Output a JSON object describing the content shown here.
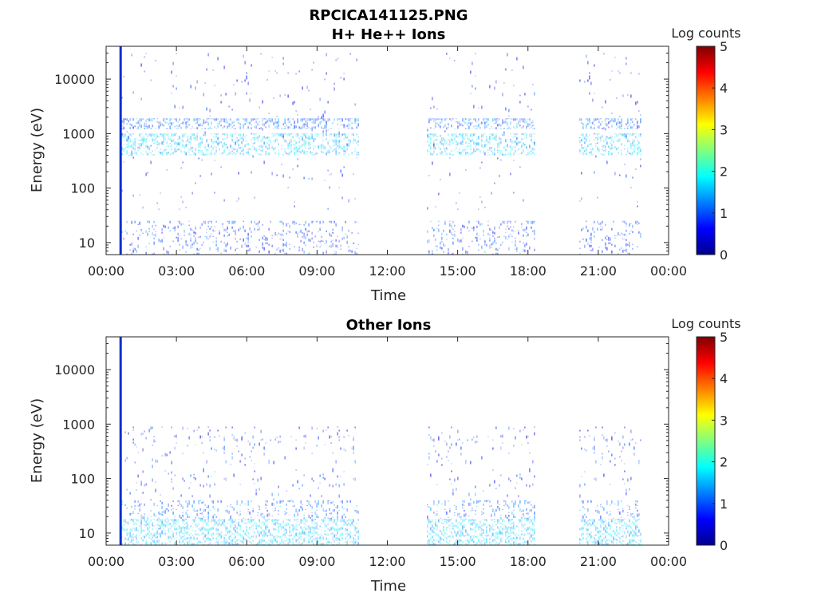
{
  "figure": {
    "title_line1": "RPCICA141125.PNG"
  },
  "chart_data": [
    {
      "type": "heatmap",
      "title": "H+ He++ Ions",
      "xlabel": "Time",
      "ylabel": "Energy (eV)",
      "x_range": [
        "00:00",
        "24:00"
      ],
      "x_ticks": [
        "00:00",
        "03:00",
        "06:00",
        "09:00",
        "12:00",
        "15:00",
        "18:00",
        "21:00",
        "00:00"
      ],
      "y_scale": "log",
      "y_range": [
        6,
        40000
      ],
      "y_ticks": [
        {
          "value": 10,
          "label": "10"
        },
        {
          "value": 100,
          "label": "100"
        },
        {
          "value": 1000,
          "label": "1000"
        },
        {
          "value": 10000,
          "label": "10000"
        }
      ],
      "colorbar": {
        "title": "Log counts",
        "range": [
          0,
          5
        ],
        "ticks": [
          "0",
          "1",
          "2",
          "3",
          "4",
          "5"
        ],
        "colormap": "jet"
      },
      "data_intervals_hours": [
        [
          0.6,
          10.8
        ],
        [
          13.7,
          18.3
        ],
        [
          20.2,
          22.8
        ]
      ],
      "saturated_stripe_hour": 0.62,
      "bands": [
        {
          "e_min": 1200,
          "e_max": 1900,
          "log_counts": 1.1,
          "density": 0.55
        },
        {
          "e_min": 400,
          "e_max": 1000,
          "log_counts": 1.6,
          "density": 0.6
        },
        {
          "e_min": 40,
          "e_max": 30000,
          "log_counts": 0.6,
          "density": 0.03
        },
        {
          "e_min": 6,
          "e_max": 25,
          "log_counts": 0.9,
          "density": 0.25
        }
      ]
    },
    {
      "type": "heatmap",
      "title": "Other Ions",
      "xlabel": "Time",
      "ylabel": "Energy (eV)",
      "x_range": [
        "00:00",
        "24:00"
      ],
      "x_ticks": [
        "00:00",
        "03:00",
        "06:00",
        "09:00",
        "12:00",
        "15:00",
        "18:00",
        "21:00",
        "00:00"
      ],
      "y_scale": "log",
      "y_range": [
        6,
        40000
      ],
      "y_ticks": [
        {
          "value": 10,
          "label": "10"
        },
        {
          "value": 100,
          "label": "100"
        },
        {
          "value": 1000,
          "label": "1000"
        },
        {
          "value": 10000,
          "label": "10000"
        }
      ],
      "colorbar": {
        "title": "Log counts",
        "range": [
          0,
          5
        ],
        "ticks": [
          "0",
          "1",
          "2",
          "3",
          "4",
          "5"
        ],
        "colormap": "jet"
      },
      "data_intervals_hours": [
        [
          0.6,
          10.8
        ],
        [
          13.7,
          18.3
        ],
        [
          20.2,
          22.8
        ]
      ],
      "saturated_stripe_hour": 0.62,
      "bands": [
        {
          "e_min": 6,
          "e_max": 18,
          "log_counts": 1.6,
          "density": 0.65
        },
        {
          "e_min": 18,
          "e_max": 40,
          "log_counts": 1.1,
          "density": 0.3
        },
        {
          "e_min": 500,
          "e_max": 900,
          "log_counts": 0.7,
          "density": 0.12
        },
        {
          "e_min": 40,
          "e_max": 600,
          "log_counts": 0.8,
          "density": 0.06
        }
      ]
    }
  ]
}
